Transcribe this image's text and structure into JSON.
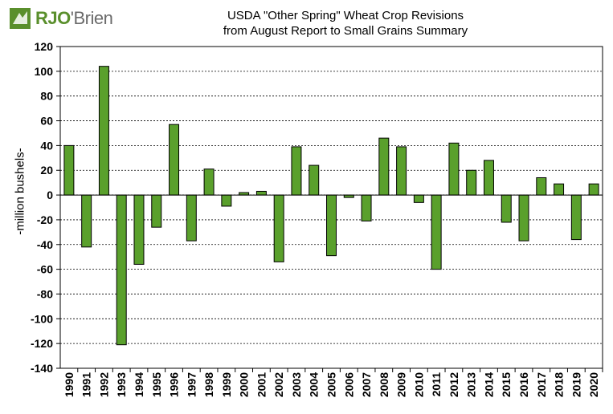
{
  "logo": {
    "brand": "RJO",
    "rest": "'Brien",
    "mark_color": "#5a8f2c"
  },
  "chart_data": {
    "type": "bar",
    "title": "USDA \"Other Spring\" Wheat Crop Revisions",
    "subtitle": "from August Report to Small Grains Summary",
    "xlabel": "",
    "ylabel": "-million bushels-",
    "ylim": [
      -140,
      120
    ],
    "yticks": [
      120,
      100,
      80,
      60,
      40,
      20,
      0,
      -20,
      -40,
      -60,
      -80,
      -100,
      -120,
      -140
    ],
    "grid": true,
    "bar_color": "#5aa02c",
    "categories": [
      "1990",
      "1991",
      "1992",
      "1993",
      "1994",
      "1995",
      "1996",
      "1997",
      "1998",
      "1999",
      "2000",
      "2001",
      "2002",
      "2003",
      "2004",
      "2005",
      "2006",
      "2007",
      "2008",
      "2009",
      "2010",
      "2011",
      "2012",
      "2013",
      "2014",
      "2015",
      "2016",
      "2017",
      "2018",
      "2019",
      "2020"
    ],
    "values": [
      40,
      -42,
      104,
      -121,
      -56,
      -26,
      57,
      -37,
      21,
      -9,
      2,
      3,
      -54,
      39,
      24,
      -49,
      -2,
      -21,
      46,
      39,
      -6,
      -60,
      42,
      20,
      28,
      -22,
      -37,
      14,
      9,
      -36,
      9
    ]
  }
}
